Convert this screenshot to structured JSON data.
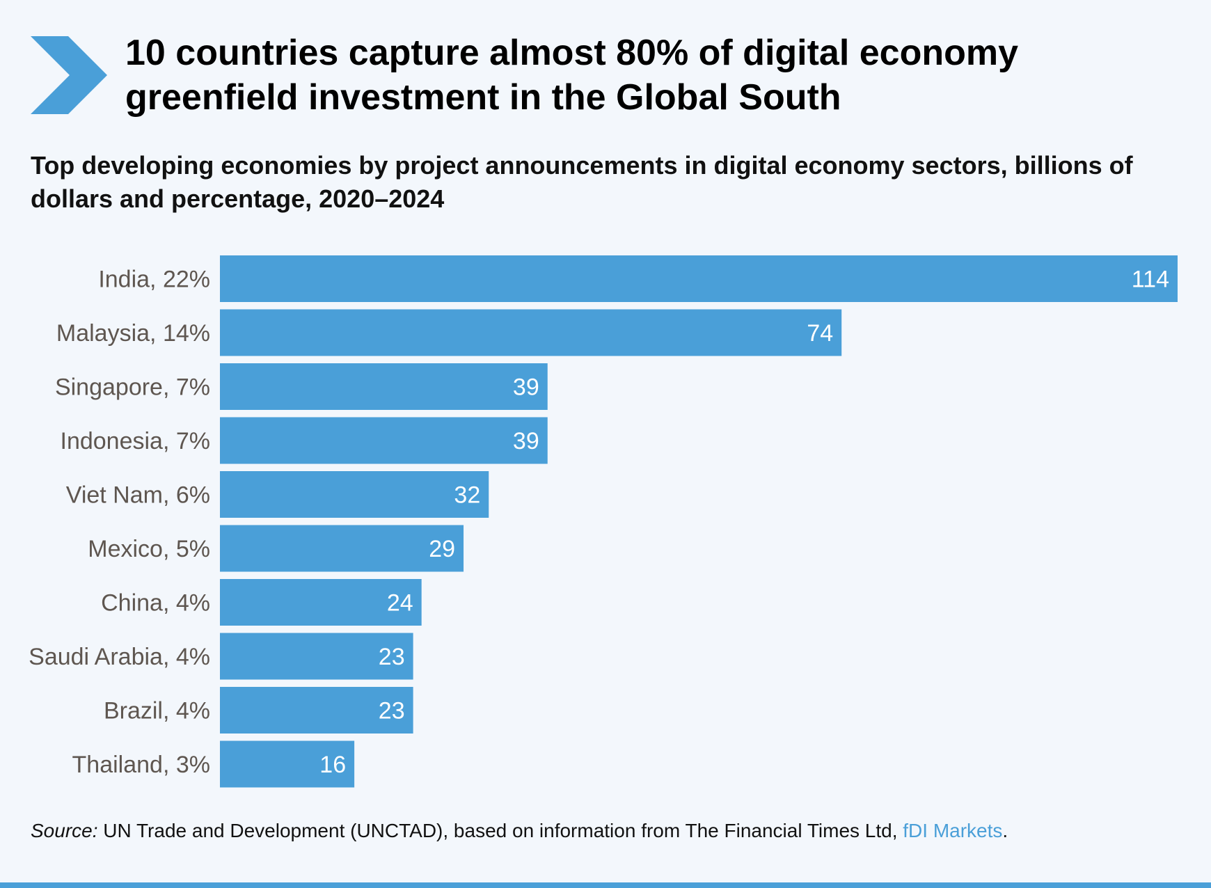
{
  "header": {
    "title": "10 countries capture almost 80% of digital economy greenfield investment in the Global South",
    "chevron_icon": "chevron-right-icon"
  },
  "subtitle": "Top developing economies by project announcements in digital economy sectors, billions of dollars and percentage, 2020–2024",
  "source": {
    "label": "Source:",
    "text": " UN Trade and Development (UNCTAD), based on information from The Financial Times Ltd, ",
    "link": "fDI Markets",
    "end": "."
  },
  "colors": {
    "bar": "#4a9fd8",
    "background": "#f3f7fc",
    "category_label": "#5e5650",
    "value_label": "#ffffff",
    "link": "#4a9fd8"
  },
  "chart_data": {
    "type": "bar",
    "orientation": "horizontal",
    "title": "",
    "xlabel": "",
    "ylabel": "",
    "categories": [
      "India, 22%",
      "Malaysia, 14%",
      "Singapore, 7%",
      "Indonesia, 7%",
      "Viet Nam, 6%",
      "Mexico, 5%",
      "China, 4%",
      "Saudi Arabia, 4%",
      "Brazil, 4%",
      "Thailand, 3%"
    ],
    "values": [
      114,
      74,
      39,
      39,
      32,
      29,
      24,
      23,
      23,
      16
    ],
    "xlim": [
      0,
      114
    ],
    "grid": false,
    "legend": "none",
    "data_labels": "inside-end"
  }
}
